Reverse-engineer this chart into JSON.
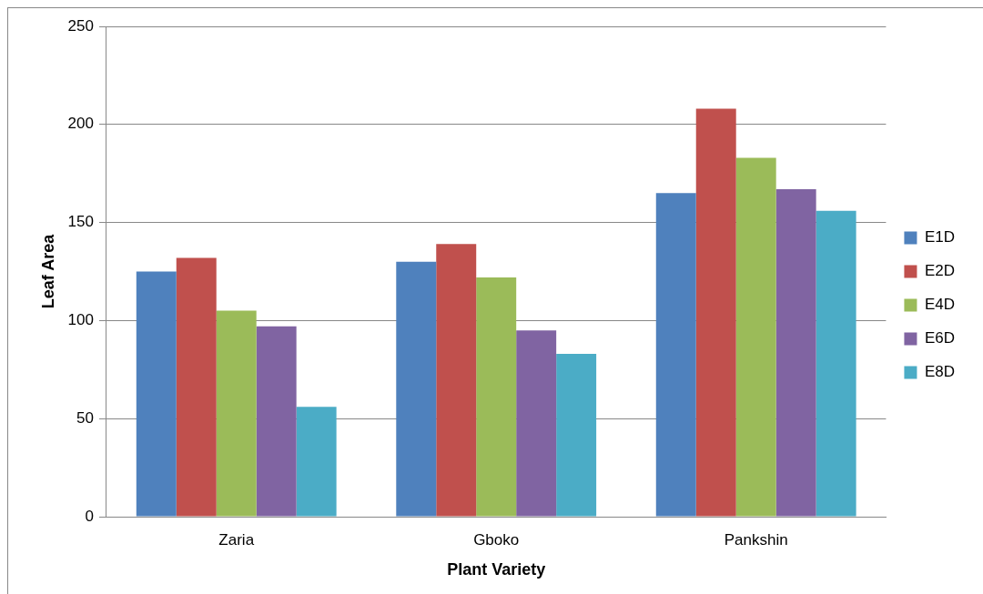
{
  "chart_data": {
    "type": "bar",
    "xlabel": "Plant Variety",
    "ylabel": "Leaf Area",
    "categories": [
      "Zaria",
      "Gboko",
      "Pankshin"
    ],
    "series": [
      {
        "name": "E1D",
        "color": "#4f81bd",
        "values": [
          125,
          130,
          165
        ]
      },
      {
        "name": "E2D",
        "color": "#c0504d",
        "values": [
          132,
          139,
          208
        ]
      },
      {
        "name": "E4D",
        "color": "#9bbb59",
        "values": [
          105,
          122,
          183
        ]
      },
      {
        "name": "E6D",
        "color": "#8064a2",
        "values": [
          97,
          95,
          167
        ]
      },
      {
        "name": "E8D",
        "color": "#4bacc6",
        "values": [
          56,
          83,
          156
        ]
      }
    ],
    "ylim": [
      0,
      250
    ],
    "yticks": [
      0,
      50,
      100,
      150,
      200,
      250
    ],
    "grid": "y",
    "legend": "right"
  }
}
